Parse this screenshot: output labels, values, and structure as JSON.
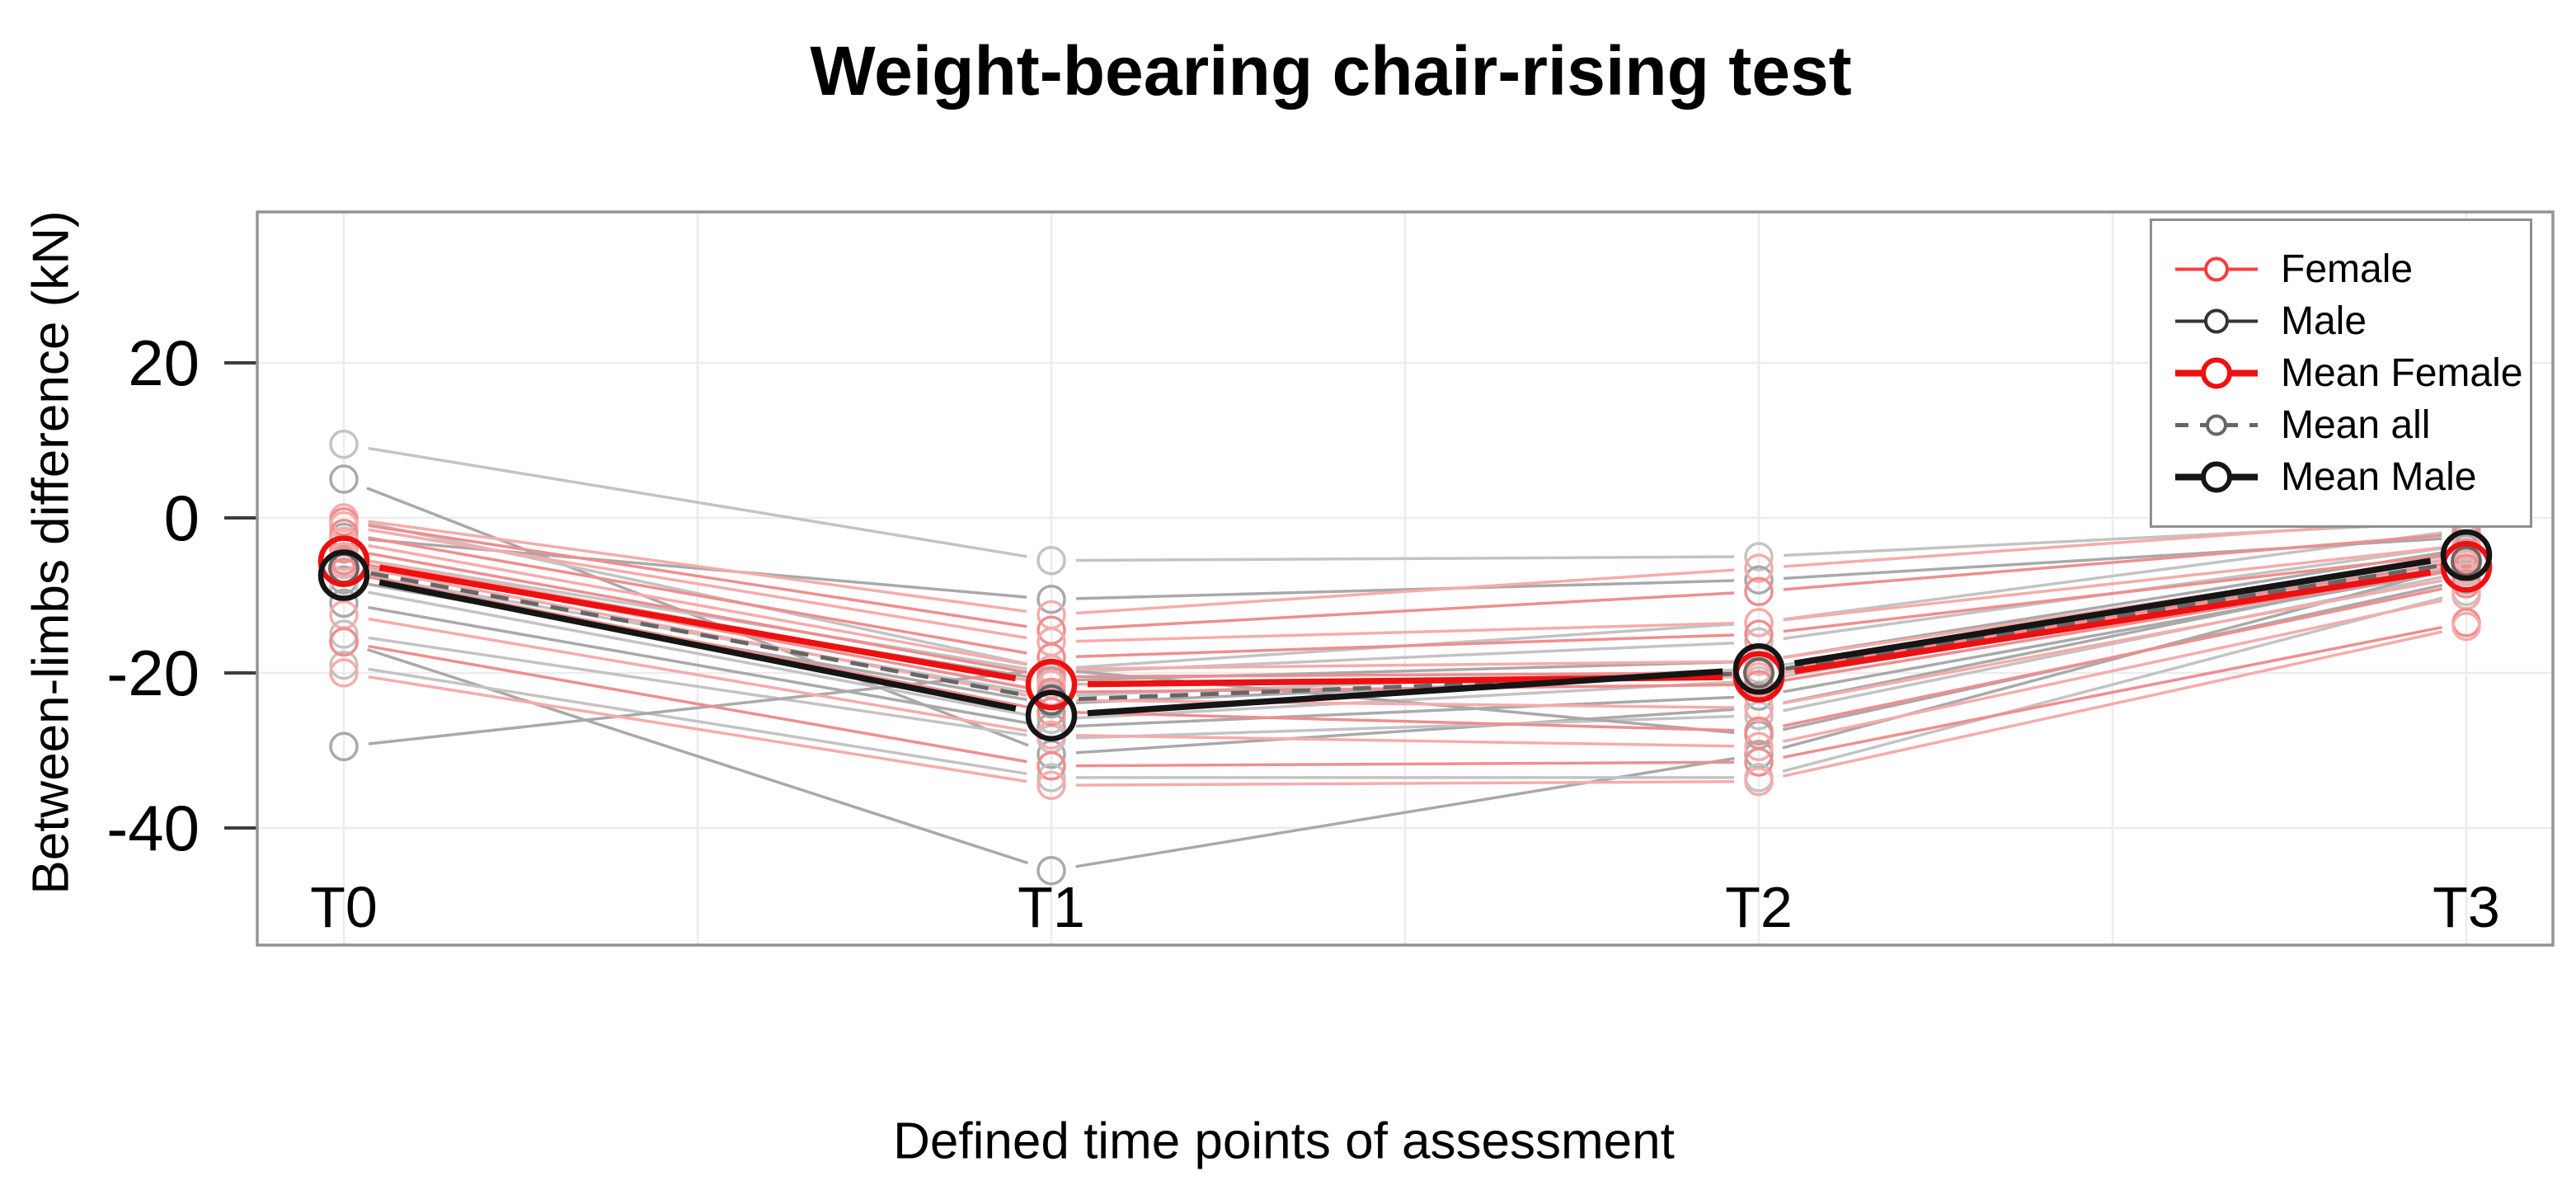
{
  "title": "Weight-bearing chair-rising test",
  "x_axis": {
    "label": "Defined time points of assessment",
    "tick_labels": [
      "T0",
      "T1",
      "T2",
      "T3"
    ]
  },
  "y_axis": {
    "label": "Between-limbs difference (kN)",
    "tick_labels": [
      "20",
      "0",
      "-20",
      "-40"
    ],
    "tick_values": [
      20,
      0,
      -20,
      -40
    ]
  },
  "legend": {
    "items": [
      {
        "label": "Female",
        "style": "female"
      },
      {
        "label": "Male",
        "style": "male"
      },
      {
        "label": "Mean Female",
        "style": "mean_female"
      },
      {
        "label": "Mean all",
        "style": "mean_all"
      },
      {
        "label": "Mean Male",
        "style": "mean_male"
      }
    ]
  },
  "colors": {
    "grid": "#ececec",
    "box_border": "#949494",
    "tick_mark": "#3d3d3d",
    "text": "#000000",
    "female_shades": [
      "#f6abab",
      "#ef8e8e"
    ],
    "male_shades": [
      "#c3c3c3",
      "#a9a9a9"
    ],
    "female_legend": "#fb3c3c",
    "male_legend": "#333333",
    "mean_female": "#ee1010",
    "mean_male": "#151515",
    "mean_all": "#666666"
  },
  "chart_data": {
    "type": "line",
    "title": "Weight-bearing chair-rising test",
    "xlabel": "Defined time points of assessment",
    "ylabel": "Between-limbs difference (kN)",
    "categories": [
      "T0",
      "T1",
      "T2",
      "T3"
    ],
    "ylim": [
      -55,
      40
    ],
    "yticks": [
      20,
      0,
      -20,
      -40
    ],
    "grid": true,
    "legend_position": "top-right",
    "means": {
      "female": [
        -5.6,
        -21.5,
        -20.5,
        -6.3
      ],
      "all": [
        -6.5,
        -23.5,
        -20.0,
        -5.6
      ],
      "male": [
        -7.4,
        -25.5,
        -19.5,
        -4.8
      ]
    },
    "female_subjects": [
      [
        0,
        -12.5,
        -6.5,
        0
      ],
      [
        -0.5,
        -14.5,
        -9.5,
        -2
      ],
      [
        -1,
        -16,
        -13.5,
        -3.5
      ],
      [
        -2,
        -18,
        -15,
        -4.5
      ],
      [
        -3,
        -19.5,
        -18.5,
        -5
      ],
      [
        -4,
        -20.5,
        -20,
        -5.5
      ],
      [
        -5,
        -21.5,
        -20.5,
        -6
      ],
      [
        -5.5,
        -22.5,
        -21.5,
        -6.5
      ],
      [
        -6,
        -23.5,
        -24.5,
        -7.5
      ],
      [
        -7,
        -25,
        -27.5,
        -8.5
      ],
      [
        -12.5,
        -28,
        -29.5,
        -10
      ],
      [
        -16,
        -32,
        -31.5,
        -13.5
      ],
      [
        -20,
        -34.5,
        -34,
        -14
      ]
    ],
    "male_subjects": [
      [
        9.5,
        -5.5,
        -5,
        -0.5
      ],
      [
        5,
        -30.5,
        -24.5,
        -6
      ],
      [
        0,
        -19.5,
        -13.5,
        -1.5
      ],
      [
        -2.5,
        -10.5,
        -8,
        -2.5
      ],
      [
        -5,
        -20,
        -16,
        -3.5
      ],
      [
        -6,
        -21,
        -18.5,
        -4
      ],
      [
        -7,
        -23,
        -19.5,
        -4.5
      ],
      [
        -8,
        -24,
        -20,
        -5
      ],
      [
        -9,
        -26,
        -21,
        -5.5
      ],
      [
        -11,
        -27,
        -23,
        -6.5
      ],
      [
        -15,
        -28.5,
        -25.5,
        -7
      ],
      [
        -16,
        -45.5,
        -30.5,
        -6
      ],
      [
        -19,
        -33.5,
        -33.5,
        -9.5
      ],
      [
        -29.5,
        -19.5,
        -28,
        -8
      ]
    ]
  }
}
